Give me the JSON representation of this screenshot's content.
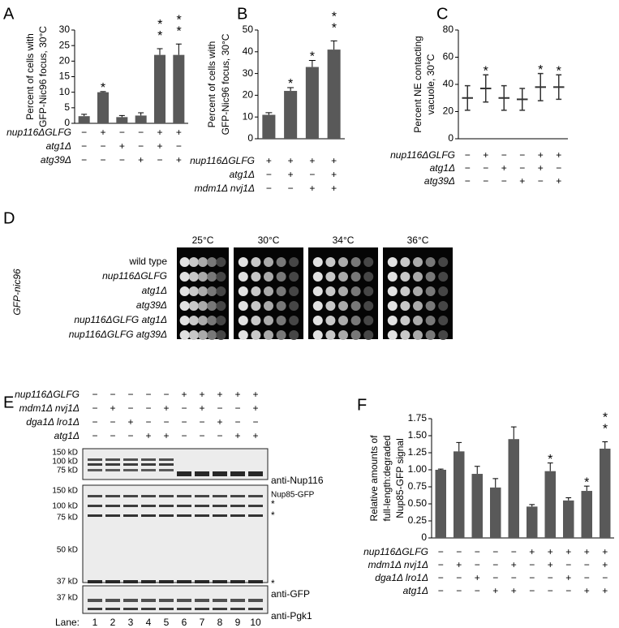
{
  "chart_data": [
    {
      "type": "bar",
      "panel": "A",
      "ylabel": [
        "Percent of cells with",
        "GFP-Nic96 focus, 30°C"
      ],
      "values": [
        2.3,
        10,
        2,
        2.5,
        22,
        22
      ],
      "errors": [
        0.6,
        0.2,
        0.5,
        0.9,
        2,
        3.5
      ],
      "annotations": [
        null,
        "*",
        null,
        null,
        "**",
        "**"
      ],
      "color": "#595959",
      "ylim": [
        0,
        30
      ],
      "yticks": [
        0,
        5,
        10,
        15,
        20,
        25,
        30
      ],
      "conditions": [
        {
          "name": "nup116ΔGLFG",
          "signs": [
            "−",
            "+",
            "−",
            "−",
            "+",
            "+"
          ]
        },
        {
          "name": "atg1Δ",
          "signs": [
            "−",
            "−",
            "+",
            "−",
            "+",
            "−"
          ]
        },
        {
          "name": "atg39Δ",
          "signs": [
            "−",
            "−",
            "−",
            "+",
            "−",
            "+"
          ]
        }
      ]
    },
    {
      "type": "bar",
      "panel": "B",
      "ylabel": [
        "Percent of cells with",
        "GFP-Nic96 focus, 30°C"
      ],
      "values": [
        11,
        22,
        33,
        41
      ],
      "errors": [
        1,
        1.5,
        3,
        4
      ],
      "annotations": [
        null,
        "*",
        "*",
        "**"
      ],
      "color": "#595959",
      "ylim": [
        0,
        50
      ],
      "yticks": [
        0,
        10,
        20,
        30,
        40,
        50
      ],
      "conditions": [
        {
          "name": "nup116ΔGLFG",
          "signs": [
            "+",
            "+",
            "+",
            "+"
          ]
        },
        {
          "name": "atg1Δ",
          "signs": [
            "−",
            "+",
            "−",
            "+"
          ]
        },
        {
          "name": "mdm1Δ nvj1Δ",
          "signs": [
            "−",
            "−",
            "+",
            "+"
          ]
        }
      ]
    },
    {
      "type": "dot",
      "panel": "C",
      "ylabel": [
        "Percent NE contacting",
        "vacuole, 30°C"
      ],
      "values": [
        30,
        37,
        30,
        29,
        38,
        38
      ],
      "errors": [
        9,
        10,
        9,
        8,
        10,
        9
      ],
      "annotations": [
        null,
        "*",
        null,
        null,
        "*",
        "*"
      ],
      "color": "#333333",
      "ylim": [
        0,
        80
      ],
      "yticks": [
        0,
        20,
        40,
        60,
        80
      ],
      "conditions": [
        {
          "name": "nup116ΔGLFG",
          "signs": [
            "−",
            "+",
            "−",
            "−",
            "+",
            "+"
          ]
        },
        {
          "name": "atg1Δ",
          "signs": [
            "−",
            "−",
            "+",
            "−",
            "+",
            "−"
          ]
        },
        {
          "name": "atg39Δ",
          "signs": [
            "−",
            "−",
            "−",
            "+",
            "−",
            "+"
          ]
        }
      ]
    },
    {
      "type": "bar",
      "panel": "F",
      "ylabel": [
        "Relative amounts of",
        "full-length:degraded",
        "Nup85-GFP signal"
      ],
      "values": [
        1.0,
        1.27,
        0.94,
        0.74,
        1.45,
        0.46,
        0.98,
        0.55,
        0.69,
        1.31
      ],
      "errors": [
        0.01,
        0.13,
        0.11,
        0.13,
        0.18,
        0.03,
        0.12,
        0.04,
        0.07,
        0.1
      ],
      "annotations": [
        null,
        null,
        null,
        null,
        null,
        null,
        "*",
        null,
        "*",
        "**"
      ],
      "color": "#595959",
      "ylim": [
        0,
        1.75
      ],
      "yticks": [
        0,
        0.25,
        {
          "value": 0.5,
          "label": "0.50"
        },
        0.75,
        {
          "value": 1,
          "label": "1.00"
        },
        1.25,
        {
          "value": 1.5,
          "label": "1.50"
        },
        1.75
      ],
      "conditions": [
        {
          "name": "nup116ΔGLFG",
          "signs": [
            "−",
            "−",
            "−",
            "−",
            "−",
            "+",
            "+",
            "+",
            "+",
            "+"
          ]
        },
        {
          "name": "mdm1Δ nvj1Δ",
          "signs": [
            "−",
            "+",
            "−",
            "−",
            "+",
            "−",
            "+",
            "−",
            "−",
            "+"
          ]
        },
        {
          "name": "dga1Δ lro1Δ",
          "signs": [
            "−",
            "−",
            "+",
            "−",
            "−",
            "−",
            "−",
            "+",
            "−",
            "−"
          ]
        },
        {
          "name": "atg1Δ",
          "signs": [
            "−",
            "−",
            "−",
            "+",
            "+",
            "−",
            "−",
            "−",
            "+",
            "+"
          ]
        }
      ]
    }
  ],
  "panel_d": {
    "label": "D",
    "side_label": "GFP-nic96",
    "temperatures": [
      "25°C",
      "30°C",
      "34°C",
      "36°C"
    ],
    "strains": [
      "wild type",
      "nup116ΔGLFG",
      "atg1Δ",
      "atg39Δ",
      "nup116ΔGLFG atg1Δ",
      "nup116ΔGLFG atg39Δ"
    ]
  },
  "panel_e": {
    "label": "E",
    "conditions": [
      {
        "name": "nup116ΔGLFG",
        "signs": [
          "−",
          "−",
          "−",
          "−",
          "−",
          "+",
          "+",
          "+",
          "+",
          "+"
        ]
      },
      {
        "name": "mdm1Δ nvj1Δ",
        "signs": [
          "−",
          "+",
          "−",
          "−",
          "+",
          "−",
          "+",
          "−",
          "−",
          "+"
        ]
      },
      {
        "name": "dga1Δ lro1Δ",
        "signs": [
          "−",
          "−",
          "+",
          "−",
          "−",
          "−",
          "−",
          "+",
          "−",
          "−"
        ]
      },
      {
        "name": "atg1Δ",
        "signs": [
          "−",
          "−",
          "−",
          "+",
          "+",
          "−",
          "−",
          "−",
          "+",
          "+"
        ]
      }
    ],
    "blots": [
      {
        "markers": [
          "150 kD",
          "100 kD",
          "75 kD"
        ],
        "labels": [
          "anti-Nup116"
        ]
      },
      {
        "markers": [
          "150 kD",
          "100 kD",
          "75 kD",
          "50 kD",
          "37 kD"
        ],
        "labels": [
          "Nup85-GFP",
          "*",
          "*",
          "*",
          "anti-GFP"
        ]
      },
      {
        "markers": [
          "37 kD"
        ],
        "labels": [
          "anti-Pgk1"
        ]
      }
    ],
    "lane_label": "Lane:",
    "lanes": [
      "1",
      "2",
      "3",
      "4",
      "5",
      "6",
      "7",
      "8",
      "9",
      "10"
    ]
  }
}
